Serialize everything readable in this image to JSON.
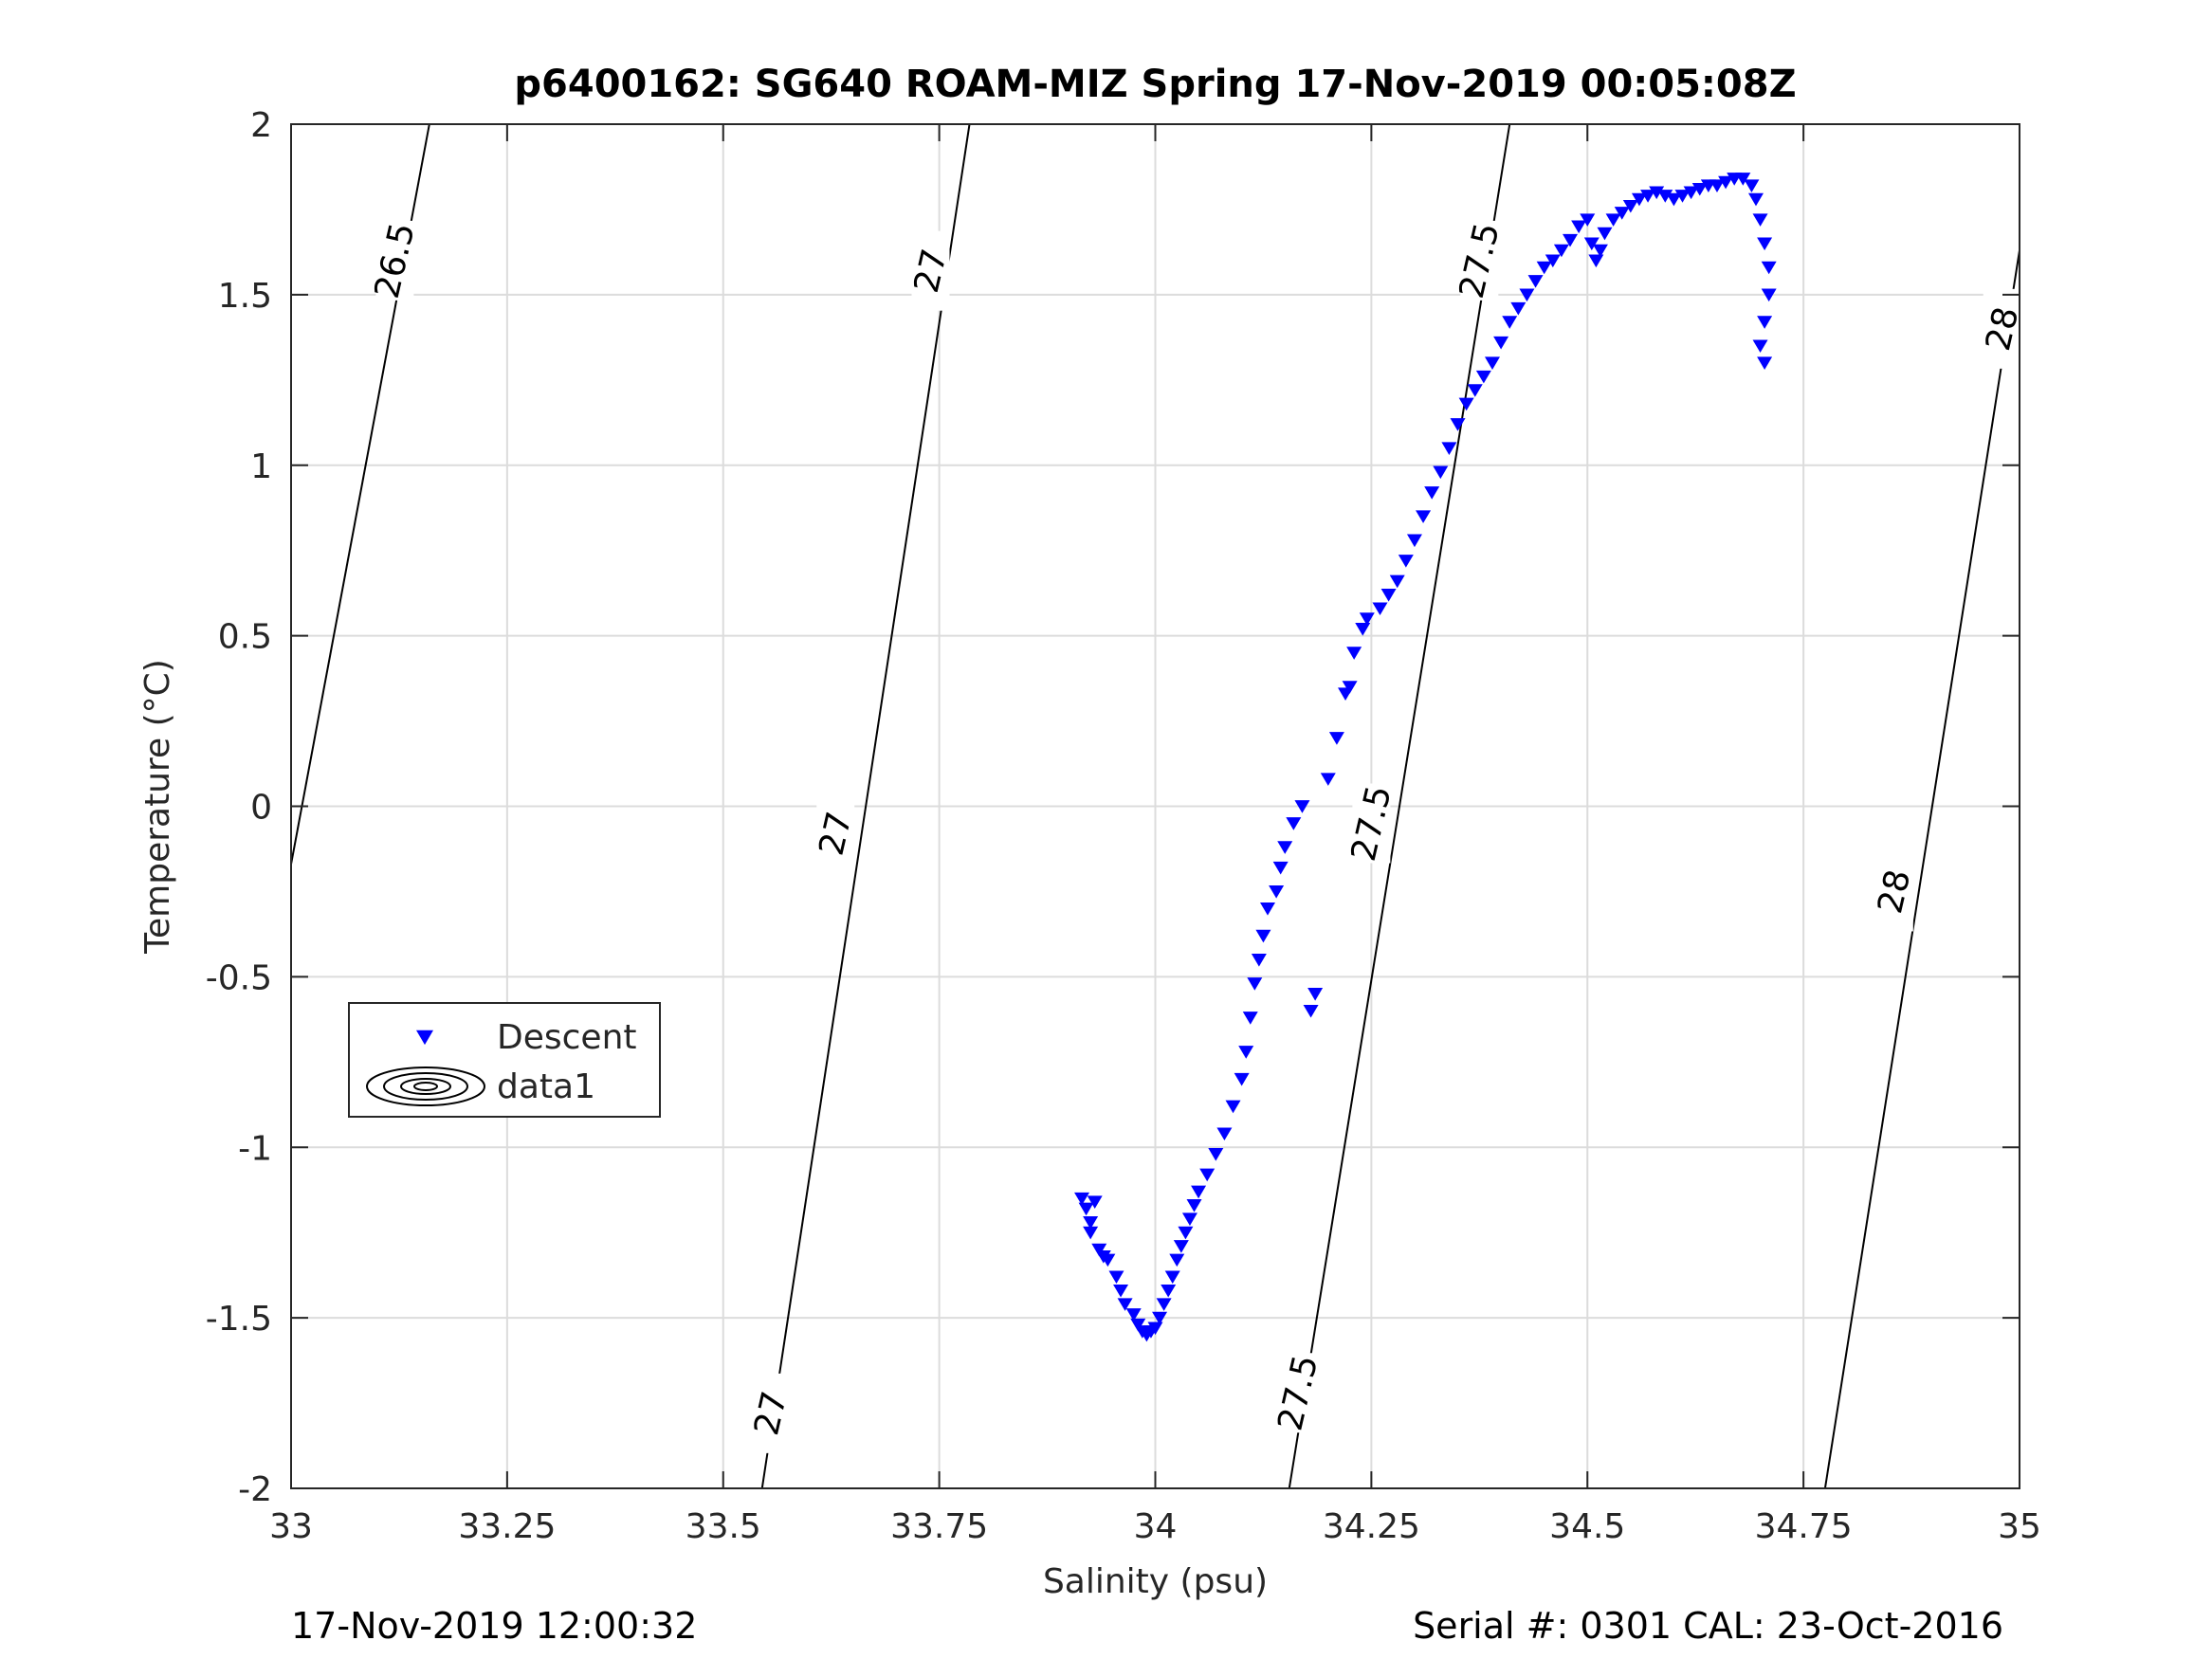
{
  "chart_data": {
    "type": "scatter",
    "title": "p6400162: SG640 ROAM-MIZ Spring 17-Nov-2019 00:05:08Z",
    "xlabel": "Salinity (psu)",
    "ylabel": "Temperature (°C)",
    "xlim": [
      33,
      35
    ],
    "ylim": [
      -2,
      2
    ],
    "xticks": [
      33,
      33.25,
      33.5,
      33.75,
      34,
      34.25,
      34.5,
      34.75,
      35
    ],
    "xtick_labels": [
      "33",
      "33.25",
      "33.5",
      "33.75",
      "34",
      "34.25",
      "34.5",
      "34.75",
      "35"
    ],
    "yticks": [
      -2,
      -1.5,
      -1,
      -0.5,
      0,
      0.5,
      1,
      1.5,
      2
    ],
    "ytick_labels": [
      "-2",
      "-1.5",
      "-1",
      "-0.5",
      "0",
      "0.5",
      "1",
      "1.5",
      "2"
    ],
    "grid": true,
    "legend_position": "lower-left",
    "legend": [
      "Descent",
      "data1"
    ],
    "marker_color": "#0000ff",
    "series": [
      {
        "name": "Descent",
        "marker": "triangle-down",
        "x": [
          33.915,
          33.92,
          33.925,
          33.93,
          33.925,
          33.935,
          33.94,
          33.945,
          33.955,
          33.96,
          33.965,
          33.975,
          33.98,
          33.985,
          33.99,
          33.995,
          34.0,
          34.005,
          34.01,
          34.015,
          34.02,
          34.025,
          34.03,
          34.035,
          34.04,
          34.045,
          34.05,
          34.06,
          34.07,
          34.08,
          34.09,
          34.1,
          34.105,
          34.11,
          34.115,
          34.12,
          34.125,
          34.13,
          34.14,
          34.145,
          34.15,
          34.16,
          34.17,
          34.185,
          34.18,
          34.2,
          34.21,
          34.22,
          34.225,
          34.23,
          34.24,
          34.245,
          34.26,
          34.27,
          34.28,
          34.29,
          34.3,
          34.31,
          34.32,
          34.33,
          34.34,
          34.35,
          34.36,
          34.37,
          34.38,
          34.39,
          34.4,
          34.41,
          34.42,
          34.43,
          34.44,
          34.45,
          34.46,
          34.47,
          34.48,
          34.49,
          34.5,
          34.505,
          34.51,
          34.515,
          34.52,
          34.53,
          34.54,
          34.55,
          34.56,
          34.57,
          34.58,
          34.59,
          34.6,
          34.61,
          34.62,
          34.63,
          34.64,
          34.65,
          34.66,
          34.67,
          34.68,
          34.69,
          34.695,
          34.7,
          34.705,
          34.71,
          34.71,
          34.705,
          34.7,
          34.705
        ],
        "y": [
          -1.15,
          -1.18,
          -1.22,
          -1.16,
          -1.25,
          -1.3,
          -1.32,
          -1.33,
          -1.38,
          -1.42,
          -1.46,
          -1.49,
          -1.52,
          -1.54,
          -1.55,
          -1.54,
          -1.53,
          -1.5,
          -1.46,
          -1.42,
          -1.38,
          -1.33,
          -1.29,
          -1.25,
          -1.21,
          -1.17,
          -1.13,
          -1.08,
          -1.02,
          -0.96,
          -0.88,
          -0.8,
          -0.72,
          -0.62,
          -0.52,
          -0.45,
          -0.38,
          -0.3,
          -0.25,
          -0.18,
          -0.12,
          -0.05,
          0.0,
          -0.55,
          -0.6,
          0.08,
          0.2,
          0.33,
          0.35,
          0.45,
          0.52,
          0.55,
          0.58,
          0.62,
          0.66,
          0.72,
          0.78,
          0.85,
          0.92,
          0.98,
          1.05,
          1.12,
          1.18,
          1.22,
          1.26,
          1.3,
          1.36,
          1.42,
          1.46,
          1.5,
          1.54,
          1.58,
          1.6,
          1.63,
          1.66,
          1.7,
          1.72,
          1.65,
          1.6,
          1.63,
          1.68,
          1.72,
          1.74,
          1.76,
          1.78,
          1.79,
          1.8,
          1.79,
          1.78,
          1.79,
          1.8,
          1.81,
          1.82,
          1.82,
          1.83,
          1.84,
          1.84,
          1.82,
          1.78,
          1.72,
          1.65,
          1.58,
          1.5,
          1.42,
          1.35,
          1.3
        ]
      }
    ],
    "contours": {
      "name": "data1",
      "levels": [
        {
          "level": "26.5",
          "points": [
            [
              33.0,
              -0.17
            ],
            [
              33.16,
              2.0
            ]
          ]
        },
        {
          "level": "27",
          "points": [
            [
              33.545,
              -2.0
            ],
            [
              33.785,
              2.0
            ]
          ]
        },
        {
          "level": "27.5",
          "points": [
            [
              34.155,
              -2.0
            ],
            [
              34.41,
              2.0
            ]
          ]
        },
        {
          "level": "28",
          "points": [
            [
              34.775,
              -2.0
            ],
            [
              35.0,
              1.63
            ]
          ]
        }
      ],
      "labels": [
        {
          "text": "26.5",
          "x": 33.12,
          "y": 1.6
        },
        {
          "text": "27",
          "x": 33.74,
          "y": 1.57
        },
        {
          "text": "27",
          "x": 33.63,
          "y": -0.08
        },
        {
          "text": "27",
          "x": 33.555,
          "y": -1.78
        },
        {
          "text": "27.5",
          "x": 34.375,
          "y": 1.6
        },
        {
          "text": "27.5",
          "x": 34.25,
          "y": -0.05
        },
        {
          "text": "27.5",
          "x": 34.165,
          "y": -1.72
        },
        {
          "text": "28",
          "x": 34.98,
          "y": 1.4
        },
        {
          "text": "28",
          "x": 34.855,
          "y": -0.25
        }
      ]
    }
  },
  "footer": {
    "left": "17-Nov-2019 12:00:32",
    "right": "Serial #: 0301  CAL: 23-Oct-2016"
  }
}
